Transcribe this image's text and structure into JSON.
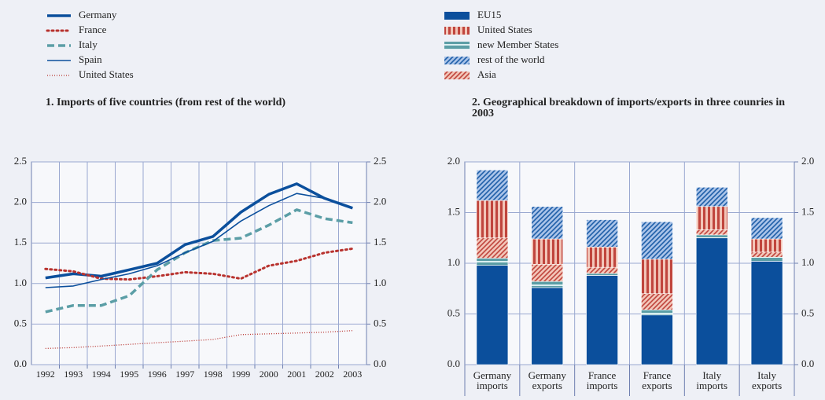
{
  "chart_data": [
    {
      "type": "line",
      "title": "1. Imports of five countries (from rest of the world)",
      "categories": [
        "1992",
        "1993",
        "1994",
        "1995",
        "1996",
        "1997",
        "1998",
        "1999",
        "2000",
        "2001",
        "2002",
        "2003"
      ],
      "ylim": [
        0,
        2.5
      ],
      "yticks": [
        {
          "value": 0,
          "label": "0.0"
        },
        0.5,
        {
          "value": 1,
          "label": "1.0"
        },
        1.5,
        {
          "value": 2,
          "label": "2.0"
        },
        2.5
      ],
      "y2lim": [
        0,
        2.5
      ],
      "y2ticks": [
        {
          "value": 0,
          "label": "0.0"
        },
        0.5,
        {
          "value": 1,
          "label": "1.0"
        },
        1.5,
        {
          "value": 2,
          "label": "2.0"
        },
        2.5
      ],
      "grid": true,
      "series": [
        {
          "name": "Germany",
          "color": "#0b4f9c",
          "line_style": "bold",
          "values": [
            1.07,
            1.12,
            1.09,
            1.17,
            1.25,
            1.48,
            1.58,
            1.88,
            2.1,
            2.23,
            2.05,
            1.93
          ]
        },
        {
          "name": "France",
          "color": "#b8322e",
          "line_style": "dotted",
          "values": [
            1.18,
            1.15,
            1.06,
            1.05,
            1.09,
            1.14,
            1.12,
            1.06,
            1.22,
            1.28,
            1.38,
            1.43
          ]
        },
        {
          "name": "Italy",
          "color": "#5b9ea6",
          "line_style": "dashed",
          "values": [
            0.65,
            0.73,
            0.73,
            0.85,
            1.17,
            1.38,
            1.53,
            1.56,
            1.72,
            1.91,
            1.8,
            1.75
          ]
        },
        {
          "name": "Spain",
          "color": "#0b4f9c",
          "line_style": "solid",
          "values": [
            0.95,
            0.97,
            1.05,
            1.12,
            1.22,
            1.38,
            1.52,
            1.77,
            1.96,
            2.11,
            2.05,
            1.93
          ]
        },
        {
          "name": "United States",
          "color": "#b8322e",
          "line_style": "fine-dotted",
          "values": [
            0.2,
            0.21,
            0.23,
            0.25,
            0.27,
            0.29,
            0.31,
            0.37,
            0.38,
            0.39,
            0.4,
            0.42
          ]
        }
      ]
    },
    {
      "type": "stacked_bar",
      "title": "2.  Geographical breakdown of imports/exports in three counries in 2003",
      "categories": [
        "Germany imports",
        "Germany exports",
        "France imports",
        "France exports",
        "Italy imports",
        "Italy exports"
      ],
      "ylim": [
        0,
        2
      ],
      "yticks": [
        {
          "value": 0,
          "label": "0.0"
        },
        0.5,
        {
          "value": 1,
          "label": "1.0"
        },
        1.5,
        {
          "value": 2,
          "label": "2.0"
        }
      ],
      "y2lim": [
        0,
        2
      ],
      "y2ticks": [
        {
          "value": 0,
          "label": "0.0"
        },
        0.5,
        {
          "value": 1,
          "label": "1.0"
        },
        1.5,
        {
          "value": 2,
          "label": "2.0"
        }
      ],
      "grid": true,
      "series": [
        {
          "name": "EU15",
          "color": "#0b4f9c",
          "pattern": "solid",
          "values": [
            0.98,
            0.76,
            0.88,
            0.49,
            1.25,
            1.02
          ]
        },
        {
          "name": "United States",
          "color": "#c0453d",
          "pattern": "vertical",
          "values": [
            0.37,
            0.25,
            0.2,
            0.34,
            0.23,
            0.13
          ]
        },
        {
          "name": "new Member States",
          "color": "#5b9ea6",
          "pattern": "horizontal",
          "values": [
            0.07,
            0.06,
            0.02,
            0.05,
            0.03,
            0.04
          ]
        },
        {
          "name": "rest of the world",
          "color": "#1f5fa8",
          "pattern": "diagonal",
          "values": [
            0.3,
            0.32,
            0.27,
            0.37,
            0.19,
            0.21
          ]
        },
        {
          "name": "Asia",
          "color": "#c0453d",
          "pattern": "diagonal",
          "values": [
            0.2,
            0.17,
            0.06,
            0.16,
            0.05,
            0.05
          ]
        }
      ]
    }
  ]
}
